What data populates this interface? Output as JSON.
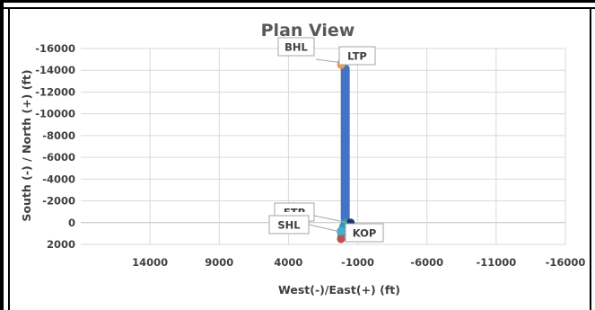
{
  "chart_data": {
    "type": "scatter",
    "title": "Plan View",
    "xlabel": "West(-)/East(+) (ft)",
    "ylabel": "South (-) / North (+) (ft)",
    "xlim": [
      19000,
      -16000
    ],
    "ylim": [
      2000,
      -16000
    ],
    "x_ticks": [
      14000,
      9000,
      4000,
      -1000,
      -6000,
      -11000,
      -16000
    ],
    "x_tick_labels": [
      "14000",
      "9000",
      "4000",
      "-1000",
      "-6000",
      "-11000",
      "-16000"
    ],
    "y_ticks": [
      -16000,
      -14000,
      -12000,
      -10000,
      -8000,
      -6000,
      -4000,
      -2000,
      0,
      2000
    ],
    "y_tick_labels": [
      "-16000",
      "-14000",
      "-12000",
      "-10000",
      "-8000",
      "-6000",
      "-4000",
      "-2000",
      "0",
      "2000"
    ],
    "grid": true,
    "colors": {
      "lateral": "#4472C4",
      "build": "#2E9BB5",
      "markers": {
        "SHL": "#4BACC6",
        "KOP": "#C0504D",
        "FTP": "#1F3864",
        "LTP": "#F79646",
        "BHL": "#F79646"
      }
    },
    "series": [
      {
        "x": [
          200,
          150,
          50,
          -100,
          -100,
          -100,
          -100,
          -100
        ],
        "y": [
          1500,
          1000,
          400,
          0,
          -2000,
          -6000,
          -10000,
          -14500
        ]
      }
    ],
    "points": [
      {
        "label": "BHL",
        "x": 200,
        "y": -14700
      },
      {
        "label": "LTP",
        "x": 200,
        "y": -14500
      },
      {
        "label": "FTP",
        "x": -100,
        "y": 0
      },
      {
        "label": "SHL",
        "x": 200,
        "y": 800
      },
      {
        "label": "KOP",
        "x": 200,
        "y": 1500
      }
    ]
  }
}
